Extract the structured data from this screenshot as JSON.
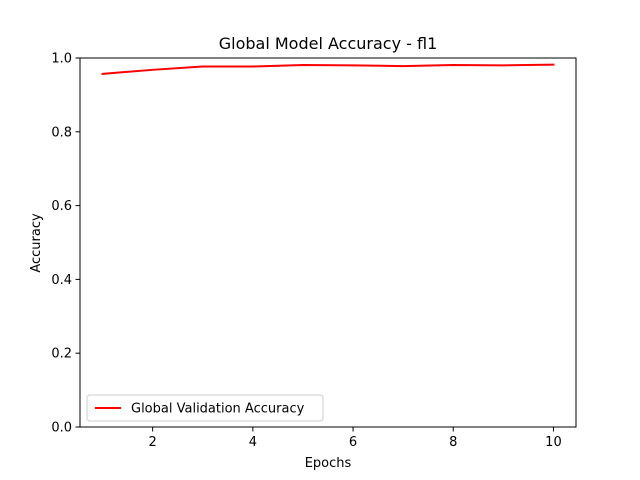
{
  "chart_data": {
    "type": "line",
    "title": "Global Model Accuracy - fl1",
    "xlabel": "Epochs",
    "ylabel": "Accuracy",
    "xlim": [
      0.55,
      10.45
    ],
    "ylim": [
      0.0,
      1.0
    ],
    "xticks": [
      2,
      4,
      6,
      8,
      10
    ],
    "yticks": [
      0.0,
      0.2,
      0.4,
      0.6,
      0.8,
      1.0
    ],
    "ytick_labels": [
      "0.0",
      "0.2",
      "0.4",
      "0.6",
      "0.8",
      "1.0"
    ],
    "grid": false,
    "legend_position": "bottom-left",
    "series": [
      {
        "name": "Global Validation Accuracy",
        "color": "#ff0000",
        "x": [
          1,
          2,
          3,
          4,
          5,
          6,
          7,
          8,
          9,
          10
        ],
        "y": [
          0.957,
          0.968,
          0.977,
          0.977,
          0.981,
          0.98,
          0.978,
          0.981,
          0.98,
          0.982
        ]
      }
    ]
  }
}
